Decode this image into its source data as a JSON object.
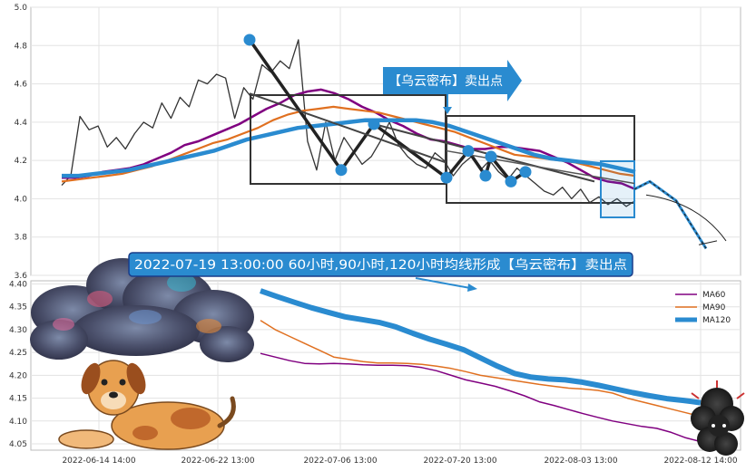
{
  "chart_data": [
    {
      "type": "line",
      "title": "",
      "xlabel": "",
      "ylabel": "",
      "ylim": [
        3.6,
        5.0
      ],
      "y_ticks": [
        "3.6",
        "3.8",
        "4.0",
        "4.2",
        "4.4",
        "4.6",
        "4.8",
        "5.0"
      ],
      "grid": true,
      "series": [
        {
          "name": "",
          "color": "#333333",
          "values": [
            4.07,
            4.12,
            4.43,
            4.36,
            4.38,
            4.27,
            4.32,
            4.26,
            4.34,
            4.4,
            4.37,
            4.5,
            4.42,
            4.53,
            4.48,
            4.62,
            4.6,
            4.65,
            4.63,
            4.42,
            4.58,
            4.52,
            4.7,
            4.66,
            4.72,
            4.68,
            4.83,
            4.3,
            4.15,
            4.4,
            4.2,
            4.32,
            4.25,
            4.18,
            4.22,
            4.3,
            4.4,
            4.28,
            4.22,
            4.18,
            4.16,
            4.24,
            4.2,
            4.12,
            4.18,
            4.22,
            4.15,
            4.2,
            4.14,
            4.1,
            4.16,
            4.12,
            4.08,
            4.04,
            4.02,
            4.06,
            4.0,
            4.05,
            3.98,
            4.01,
            3.97,
            4.0,
            3.96,
            3.99
          ]
        },
        {
          "name": "",
          "color": "#800080",
          "values": [
            4.11,
            4.11,
            4.12,
            4.14,
            4.15,
            4.16,
            4.18,
            4.21,
            4.24,
            4.28,
            4.3,
            4.33,
            4.36,
            4.39,
            4.43,
            4.47,
            4.5,
            4.54,
            4.56,
            4.57,
            4.55,
            4.52,
            4.48,
            4.45,
            4.41,
            4.38,
            4.34,
            4.31,
            4.3,
            4.28,
            4.26,
            4.26,
            4.27,
            4.27,
            4.26,
            4.25,
            4.22,
            4.19,
            4.15,
            4.11,
            4.09,
            4.08,
            4.05
          ]
        },
        {
          "name": "",
          "color": "#e07020",
          "values": [
            4.09,
            4.1,
            4.11,
            4.12,
            4.13,
            4.15,
            4.17,
            4.2,
            4.23,
            4.26,
            4.29,
            4.31,
            4.34,
            4.37,
            4.41,
            4.44,
            4.46,
            4.47,
            4.48,
            4.47,
            4.46,
            4.45,
            4.43,
            4.41,
            4.39,
            4.37,
            4.35,
            4.32,
            4.29,
            4.26,
            4.23,
            4.22,
            4.21,
            4.2,
            4.19,
            4.17,
            4.15,
            4.13,
            4.12
          ]
        },
        {
          "name": "",
          "color": "#2a8bd0",
          "values": [
            4.12,
            4.12,
            4.13,
            4.14,
            4.15,
            4.17,
            4.19,
            4.21,
            4.23,
            4.25,
            4.28,
            4.31,
            4.33,
            4.35,
            4.37,
            4.38,
            4.39,
            4.4,
            4.41,
            4.41,
            4.41,
            4.41,
            4.4,
            4.38,
            4.35,
            4.32,
            4.29,
            4.26,
            4.23,
            4.21,
            4.2,
            4.19,
            4.18,
            4.16,
            4.14
          ]
        }
      ],
      "pattern_points": [
        4.83,
        4.15,
        4.39,
        4.11,
        4.25,
        4.12,
        4.22,
        4.09,
        4.14
      ],
      "projection": [
        4.05,
        4.09,
        3.99,
        3.74
      ],
      "annotation": "【乌云密布】卖出点"
    },
    {
      "type": "line",
      "ylim": [
        4.04,
        4.4
      ],
      "y_ticks": [
        "4.05",
        "4.10",
        "4.15",
        "4.20",
        "4.25",
        "4.30",
        "4.35",
        "4.40"
      ],
      "x_ticks": [
        "2022-06-14 14:00",
        "2022-06-22 13:00",
        "2022-07-06 13:00",
        "2022-07-20 13:00",
        "2022-08-03 13:00",
        "2022-08-12 14:00"
      ],
      "grid": true,
      "legend_position": "top-right",
      "series": [
        {
          "name": "MA60",
          "color": "#800080",
          "values": [
            4.248,
            4.24,
            4.232,
            4.226,
            4.225,
            4.226,
            4.225,
            4.223,
            4.222,
            4.222,
            4.221,
            4.217,
            4.21,
            4.2,
            4.19,
            4.183,
            4.176,
            4.166,
            4.155,
            4.142,
            4.134,
            4.125,
            4.116,
            4.108,
            4.1,
            4.094,
            4.088,
            4.084,
            4.075,
            4.063,
            4.055
          ]
        },
        {
          "name": "MA90",
          "color": "#e07020",
          "values": [
            4.32,
            4.3,
            4.285,
            4.27,
            4.255,
            4.24,
            4.235,
            4.23,
            4.227,
            4.227,
            4.226,
            4.224,
            4.22,
            4.215,
            4.208,
            4.2,
            4.195,
            4.19,
            4.185,
            4.18,
            4.176,
            4.172,
            4.17,
            4.167,
            4.161,
            4.15,
            4.142,
            4.134,
            4.126,
            4.118,
            4.11
          ]
        },
        {
          "name": "MA120",
          "color": "#2a8bd0",
          "values": [
            4.385,
            4.372,
            4.36,
            4.348,
            4.338,
            4.328,
            4.322,
            4.316,
            4.306,
            4.292,
            4.279,
            4.268,
            4.256,
            4.238,
            4.22,
            4.204,
            4.196,
            4.192,
            4.19,
            4.185,
            4.178,
            4.17,
            4.162,
            4.155,
            4.149,
            4.145,
            4.14
          ]
        }
      ],
      "annotation": "2022-07-19 13:00:00 60小时,90小时,120小时均线形成【乌云密布】卖出点"
    }
  ]
}
